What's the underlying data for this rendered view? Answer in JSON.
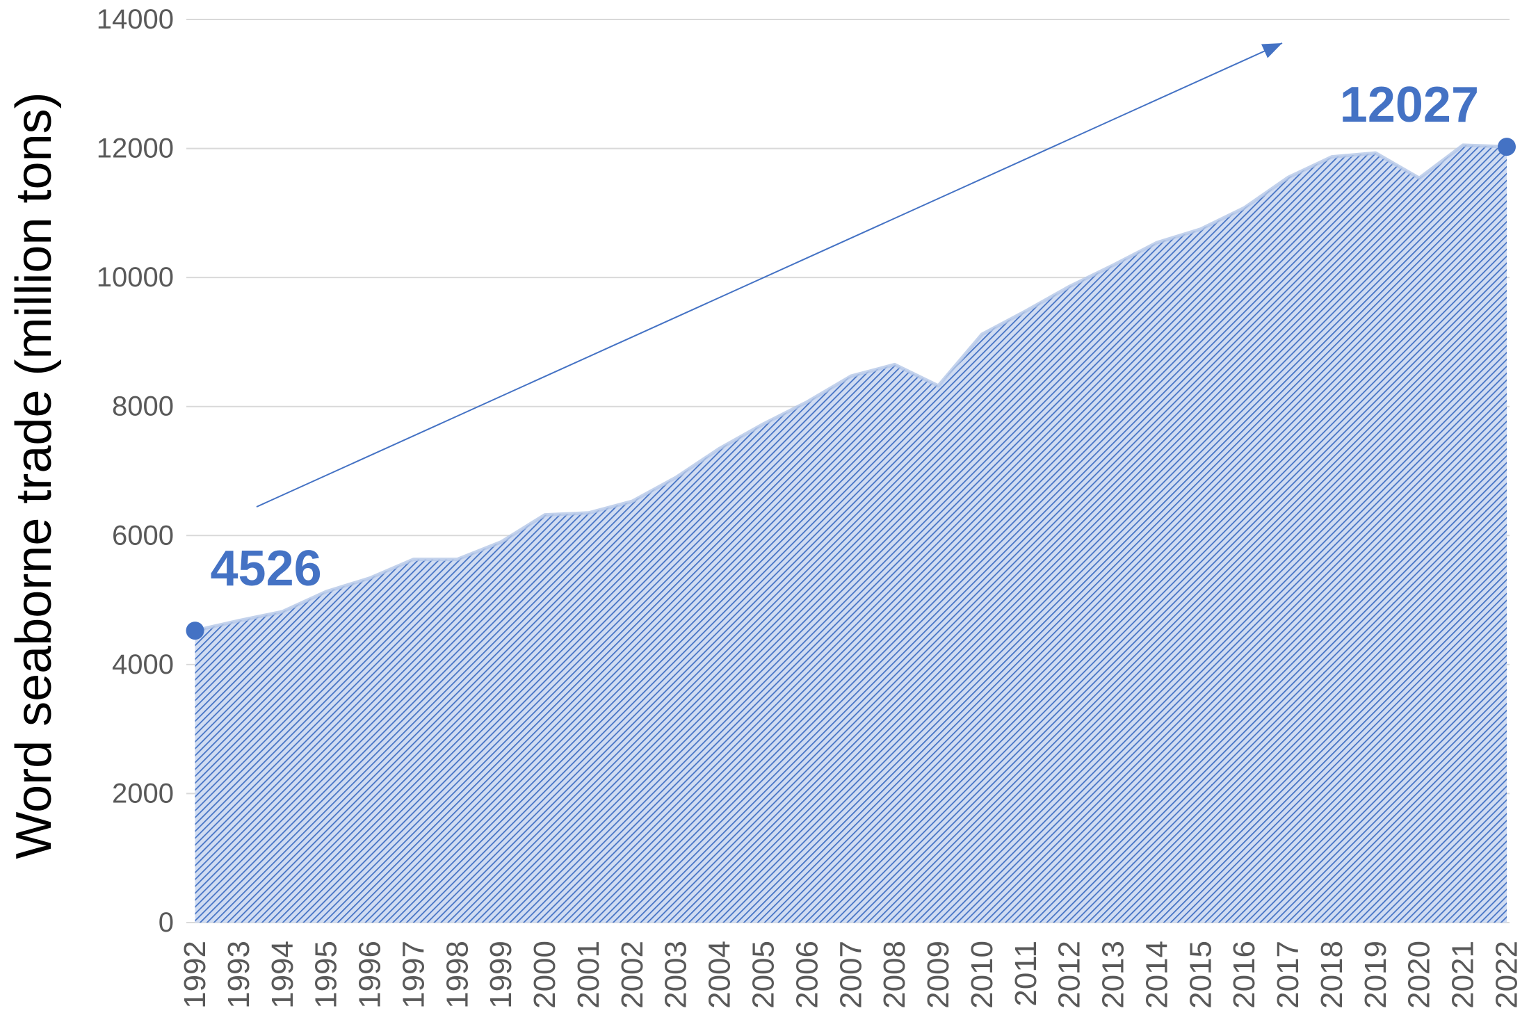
{
  "chart_data": {
    "type": "area",
    "title": "",
    "xlabel": "",
    "ylabel": "Word seaborne trade (million tons)",
    "x": [
      1992,
      1993,
      1994,
      1995,
      1996,
      1997,
      1998,
      1999,
      2000,
      2001,
      2002,
      2003,
      2004,
      2005,
      2006,
      2007,
      2008,
      2009,
      2010,
      2011,
      2012,
      2013,
      2014,
      2015,
      2016,
      2017,
      2018,
      2019,
      2020,
      2021,
      2022
    ],
    "values": [
      4526,
      4680,
      4820,
      5130,
      5340,
      5630,
      5630,
      5900,
      6320,
      6350,
      6530,
      6900,
      7350,
      7730,
      8070,
      8470,
      8650,
      8320,
      9120,
      9480,
      9860,
      10190,
      10540,
      10750,
      11080,
      11550,
      11870,
      11930,
      11540,
      12050,
      12027
    ],
    "ylim": [
      0,
      14000
    ],
    "yticks": [
      0,
      2000,
      4000,
      6000,
      8000,
      10000,
      12000,
      14000
    ],
    "grid": true,
    "annotations": [
      {
        "x": 1992,
        "label": "4526"
      },
      {
        "x": 2022,
        "label": "12027"
      }
    ],
    "colors": {
      "series": "#4472C4",
      "hatch_background": "#D0DCF2",
      "grid": "#D9D9D9"
    }
  }
}
